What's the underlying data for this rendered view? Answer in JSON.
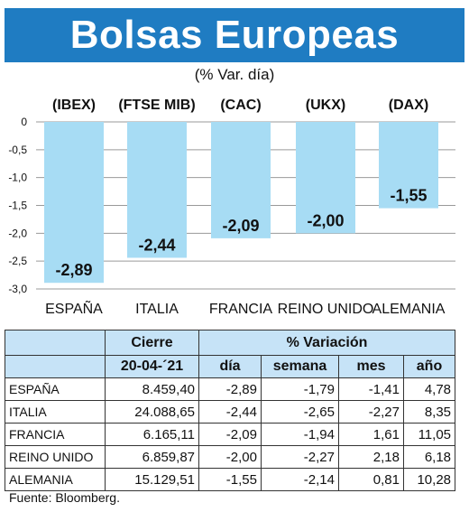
{
  "header": {
    "title": "Bolsas Europeas",
    "subtitle": "(% Var. día)"
  },
  "chart_data": {
    "type": "bar",
    "title": "Bolsas Europeas",
    "subtitle": "(% Var. día)",
    "categories": [
      "ESPAÑA",
      "ITALIA",
      "FRANCIA",
      "REINO UNIDO",
      "ALEMANIA"
    ],
    "indices": [
      "(IBEX)",
      "(FTSE MIB)",
      "(CAC)",
      "(UKX)",
      "(DAX)"
    ],
    "values": [
      -2.89,
      -2.44,
      -2.09,
      -2.0,
      -1.55
    ],
    "value_labels": [
      "-2,89",
      "-2,44",
      "-2,09",
      "-2,00",
      "-1,55"
    ],
    "yticks": [
      0,
      -0.5,
      -1.0,
      -1.5,
      -2.0,
      -2.5,
      -3.0
    ],
    "ytick_labels": [
      "0",
      "-0,5",
      "-1,0",
      "-1,5",
      "-2,0",
      "-2,5",
      "-3,0"
    ],
    "ylim": [
      -3.0,
      0
    ],
    "grid": true,
    "bar_color": "#a7dcf4",
    "grid_color": "#9a9a9a"
  },
  "table": {
    "group_headers": {
      "cierre": "Cierre",
      "variacion": "% Variación"
    },
    "sub_headers": {
      "date": "20-04-´21",
      "dia": "día",
      "semana": "semana",
      "mes": "mes",
      "ano": "año"
    },
    "rows": [
      {
        "country": "ESPAÑA",
        "cierre": "8.459,40",
        "dia": "-2,89",
        "semana": "-1,79",
        "mes": "-1,41",
        "ano": "4,78"
      },
      {
        "country": "ITALIA",
        "cierre": "24.088,65",
        "dia": "-2,44",
        "semana": "-2,65",
        "mes": "-2,27",
        "ano": "8,35"
      },
      {
        "country": "FRANCIA",
        "cierre": "6.165,11",
        "dia": "-2,09",
        "semana": "-1,94",
        "mes": "1,61",
        "ano": "11,05"
      },
      {
        "country": "REINO UNIDO",
        "cierre": "6.859,87",
        "dia": "-2,00",
        "semana": "-2,27",
        "mes": "2,18",
        "ano": "6,18"
      },
      {
        "country": "ALEMANIA",
        "cierre": "15.129,51",
        "dia": "-1,55",
        "semana": "-2,14",
        "mes": "0,81",
        "ano": "10,28"
      }
    ]
  },
  "footer": {
    "source": "Fuente: Bloomberg."
  }
}
